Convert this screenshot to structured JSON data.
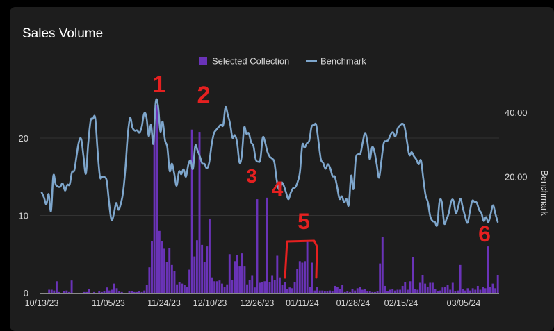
{
  "card": {
    "title": "Sales Volume"
  },
  "colors": {
    "background": "#1d1d1d",
    "bars": "#6a33b8",
    "benchmark": "#7ea6cc",
    "grid": "#333333",
    "axis_text": "#d8d8d8",
    "annotation": "#e52020"
  },
  "chart_data": {
    "type": "bar",
    "title": "Sales Volume",
    "legend_position": "top-center",
    "grid": true,
    "x_tick_labels": [
      "10/13/23",
      "11/05/23",
      "11/24/23",
      "12/10/23",
      "12/26/23",
      "01/11/24",
      "01/28/24",
      "02/15/24",
      "03/05/24"
    ],
    "y_left": {
      "ticks": [
        "0",
        "10",
        "20"
      ],
      "ylim": [
        0,
        27
      ]
    },
    "y_right": {
      "label": "Benchmark",
      "ticks": [
        "20.00",
        "40.00"
      ]
    },
    "series": [
      {
        "name": "Selected Collection",
        "type": "bar",
        "values": [
          0,
          0,
          0,
          0.4,
          0.4,
          0.3,
          1.5,
          0.1,
          0,
          0.2,
          0.3,
          0.1,
          1.6,
          0,
          0,
          0,
          0,
          0.1,
          0.1,
          0.5,
          0,
          0.1,
          0,
          0.2,
          0.1,
          0.2,
          0.7,
          0.3,
          0.4,
          1.2,
          0.6,
          0.2,
          0.1,
          0,
          0,
          0.2,
          0.2,
          0.1,
          0.1,
          0.2,
          0.1,
          0.3,
          1,
          3.3,
          6.7,
          21.5,
          24.3,
          8,
          6.7,
          5.7,
          4,
          5.8,
          3.6,
          2.8,
          1.1,
          1.4,
          1.2,
          1,
          0.8,
          3,
          21.1,
          4.7,
          6.8,
          20.8,
          6.2,
          4,
          6,
          9.6,
          2,
          1.5,
          1.5,
          1.6,
          1.2,
          0.8,
          1.1,
          5,
          1.7,
          4.1,
          4.9,
          3.4,
          5.1,
          3.4,
          1.1,
          1.7,
          2.2,
          0.7,
          12.1,
          1.3,
          1.4,
          1.5,
          12.3,
          1.4,
          2.2,
          1.7,
          4.8,
          2,
          1,
          1.4,
          0.5,
          0.7,
          0.6,
          1.4,
          3.1,
          4.1,
          3.9,
          4.1,
          6.8,
          0.8,
          3.9,
          0.3,
          0.8,
          0.3,
          0.3,
          0.2,
          0.2,
          0.3,
          0.2,
          0.9,
          0.8,
          0.5,
          1,
          0.1,
          0.2,
          0.1,
          0.5,
          0.3,
          0.6,
          0.8,
          0.4,
          0.5,
          0.2,
          0.2,
          0.1,
          0.1,
          0.2,
          3.8,
          7.2,
          0.9,
          0.2,
          0.4,
          0.5,
          0.3,
          0.4,
          0.4,
          0.9,
          1.4,
          0.4,
          1.5,
          4.6,
          0.5,
          0.4,
          1.3,
          2.3,
          1.2,
          0.8,
          1.3,
          1.3,
          0.5,
          0.2,
          0.3,
          0.7,
          0.8,
          1,
          0.4,
          1.3,
          0.2,
          0.3,
          3.6,
          0.5,
          0.3,
          0.6,
          0.3,
          0.6,
          0.4,
          0.9,
          0.4,
          0.8,
          0.6,
          6,
          0.8,
          1.2,
          0.6,
          2.3
        ]
      },
      {
        "name": "Benchmark",
        "type": "line",
        "axis": "right",
        "values": [
          15,
          13.4,
          11.3,
          14.5,
          9.2,
          20.2,
          17.5,
          16.8,
          16.8,
          17.8,
          15.6,
          17.4,
          17.5,
          21.3,
          21.9,
          26.5,
          30.9,
          31.6,
          26.1,
          20.9,
          30.3,
          37.3,
          38,
          38.2,
          28.3,
          20,
          19.9,
          19.8,
          18.4,
          11.4,
          6.4,
          8.3,
          11.7,
          9.6,
          11.5,
          15.1,
          22.8,
          33,
          38.3,
          35.3,
          34.3,
          34.4,
          33.7,
          35.5,
          39.6,
          38.6,
          32.6,
          36.1,
          30.3,
          43.1,
          42.1,
          34.1,
          37.1,
          31.3,
          29.1,
          21.7,
          24,
          20.7,
          17.1,
          21.5,
          20.7,
          22.2,
          19.9,
          23.6,
          25,
          22.4,
          29.5,
          28.1,
          26.2,
          24.1,
          23.9,
          22.5,
          24.4,
          29.7,
          33.4,
          34.5,
          35.4,
          36.2,
          36.1,
          41.6,
          39.2,
          36.4,
          32.1,
          32.9,
          30.6,
          24.4,
          26.5,
          35.2,
          33.3,
          33.5,
          30.7,
          29.5,
          25.4,
          24.6,
          25.4,
          32.1,
          30.7,
          27.7,
          26.2,
          25.6,
          24.4,
          19,
          15.9,
          18.1,
          17.2,
          15.1,
          12.9,
          14.8,
          16.3,
          16.6,
          18.3,
          21.4,
          29.8,
          29,
          30.4,
          31.2,
          35.5,
          36,
          36.1,
          30.7,
          25.4,
          24.2,
          22.4,
          23.8,
          22.6,
          20.1,
          19.9,
          16.6,
          13,
          13.8,
          11.9,
          13,
          11.1,
          20.2,
          16.1,
          25.4,
          26.9,
          27.1,
          30.7,
          33.6,
          30.7,
          25.4,
          29.1,
          27.8,
          23.7,
          19.6,
          24.9,
          30.3,
          31,
          31.4,
          33.1,
          33.8,
          32.5,
          35,
          35.9,
          36.5,
          35.4,
          30.9,
          26.7,
          27.6,
          26.3,
          25.3,
          23.8,
          25,
          19.4,
          14.2,
          11.9,
          7.6,
          6.1,
          5.8,
          4.9,
          12.1,
          11.9,
          5.4,
          6.7,
          8.6,
          12.2,
          12.4,
          8.6,
          10.5,
          13,
          10.2,
          7.5,
          5.5,
          8.8,
          12.3,
          12.1,
          11.8,
          9.6,
          8.5,
          6.1,
          7.3,
          5.7,
          8.4,
          11,
          8.3,
          5.8
        ]
      }
    ],
    "annotations": [
      {
        "text": "1"
      },
      {
        "text": "2"
      },
      {
        "text": "3"
      },
      {
        "text": "4"
      },
      {
        "text": "5"
      },
      {
        "text": "6"
      }
    ]
  }
}
